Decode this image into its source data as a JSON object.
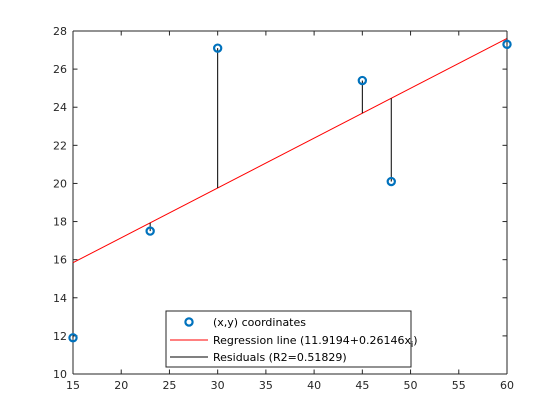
{
  "chart_data": {
    "type": "scatter",
    "xlim": [
      15,
      60
    ],
    "ylim": [
      10,
      28
    ],
    "xticks": [
      15,
      20,
      25,
      30,
      35,
      40,
      45,
      50,
      55,
      60
    ],
    "yticks": [
      10,
      12,
      14,
      16,
      18,
      20,
      22,
      24,
      26,
      28
    ],
    "grid": false,
    "legend_position": "bottom-center",
    "series": [
      {
        "kind": "points",
        "x": [
          15,
          23,
          30,
          45,
          48,
          60
        ],
        "y": [
          11.9,
          17.5,
          27.1,
          25.4,
          20.1,
          27.3
        ],
        "color": "#0072BD"
      },
      {
        "kind": "line",
        "intercept": 11.9194,
        "slope": 0.26146,
        "color": "#FF0000"
      },
      {
        "kind": "residuals",
        "color": "#000000"
      }
    ],
    "legend": [
      {
        "label": "(x,y) coordinates",
        "marker": "circle",
        "color": "#0072BD"
      },
      {
        "label_main": "Regression line (11.9194+0.26146x",
        "label_sub": "i",
        "label_end": ")",
        "marker": "line",
        "color": "#FF0000"
      },
      {
        "label": "Residuals (R2=0.51829)",
        "marker": "line",
        "color": "#000000"
      }
    ]
  }
}
